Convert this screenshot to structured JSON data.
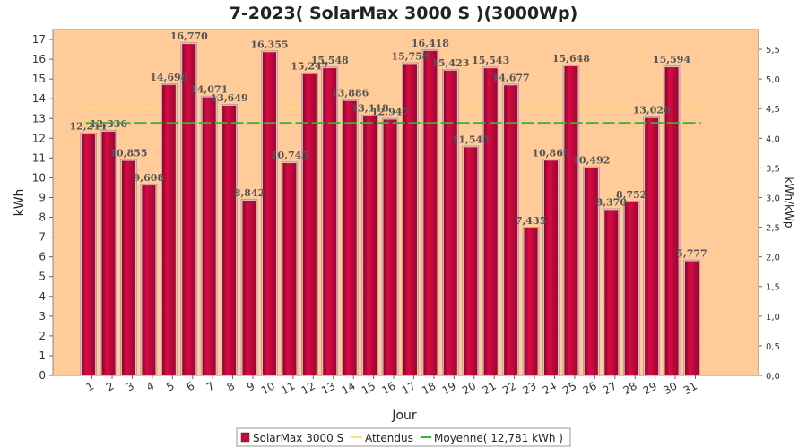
{
  "chart_data": {
    "type": "bar",
    "title": "7-2023( SolarMax 3000 S )(3000Wp)",
    "xlabel": "Jour",
    "ylabel": "kWh",
    "y2label": "kWh/kWp",
    "ylim": [
      0,
      17.5
    ],
    "y2lim": [
      0,
      5.8333
    ],
    "yticks": [
      0,
      1,
      2,
      3,
      4,
      5,
      6,
      7,
      8,
      9,
      10,
      11,
      12,
      13,
      14,
      15,
      16,
      17
    ],
    "y2ticks": [
      "0,0",
      "0,5",
      "1,0",
      "1,5",
      "2,0",
      "2,5",
      "3,0",
      "3,5",
      "4,0",
      "4,5",
      "5,0",
      "5,5"
    ],
    "categories": [
      "1",
      "2",
      "3",
      "4",
      "5",
      "6",
      "7",
      "8",
      "9",
      "10",
      "11",
      "12",
      "13",
      "14",
      "15",
      "16",
      "17",
      "18",
      "19",
      "20",
      "21",
      "22",
      "23",
      "24",
      "25",
      "26",
      "27",
      "28",
      "29",
      "30",
      "31"
    ],
    "series": [
      {
        "name": "SolarMax 3000 S",
        "color": "#c8063a",
        "values": [
          12.211,
          12.336,
          10.855,
          9.608,
          14.698,
          16.77,
          14.071,
          13.649,
          8.842,
          16.355,
          10.745,
          15.247,
          15.548,
          13.886,
          13.118,
          12.947,
          15.758,
          16.418,
          15.423,
          11.545,
          15.543,
          14.677,
          7.435,
          10.869,
          15.648,
          10.492,
          8.37,
          8.752,
          13.026,
          15.594,
          5.777
        ],
        "labels": [
          "12,211",
          "12,336",
          "10,855",
          "9,608",
          "14,698",
          "16,770",
          "14,071",
          "13,649",
          "8,842",
          "16,355",
          "10,745",
          "15,247",
          "15,548",
          "13,886",
          "13,118",
          "12,947",
          "15,758",
          "16,418",
          "15,423",
          "11,545",
          "15,543",
          "14,677",
          "7,435",
          "10,869",
          "15,648",
          "10,492",
          "8,370",
          "8,752",
          "13,026",
          "15,594",
          "5,777"
        ]
      }
    ],
    "expected": {
      "name": "Attendus",
      "value": 13.5,
      "color": "#f5e27a"
    },
    "average": {
      "name": "Moyenne( 12,781 kWh )",
      "value": 12.781,
      "color": "#2db82d"
    },
    "plot_background": "#ffcc99",
    "grid": false,
    "legend_position": "bottom"
  }
}
